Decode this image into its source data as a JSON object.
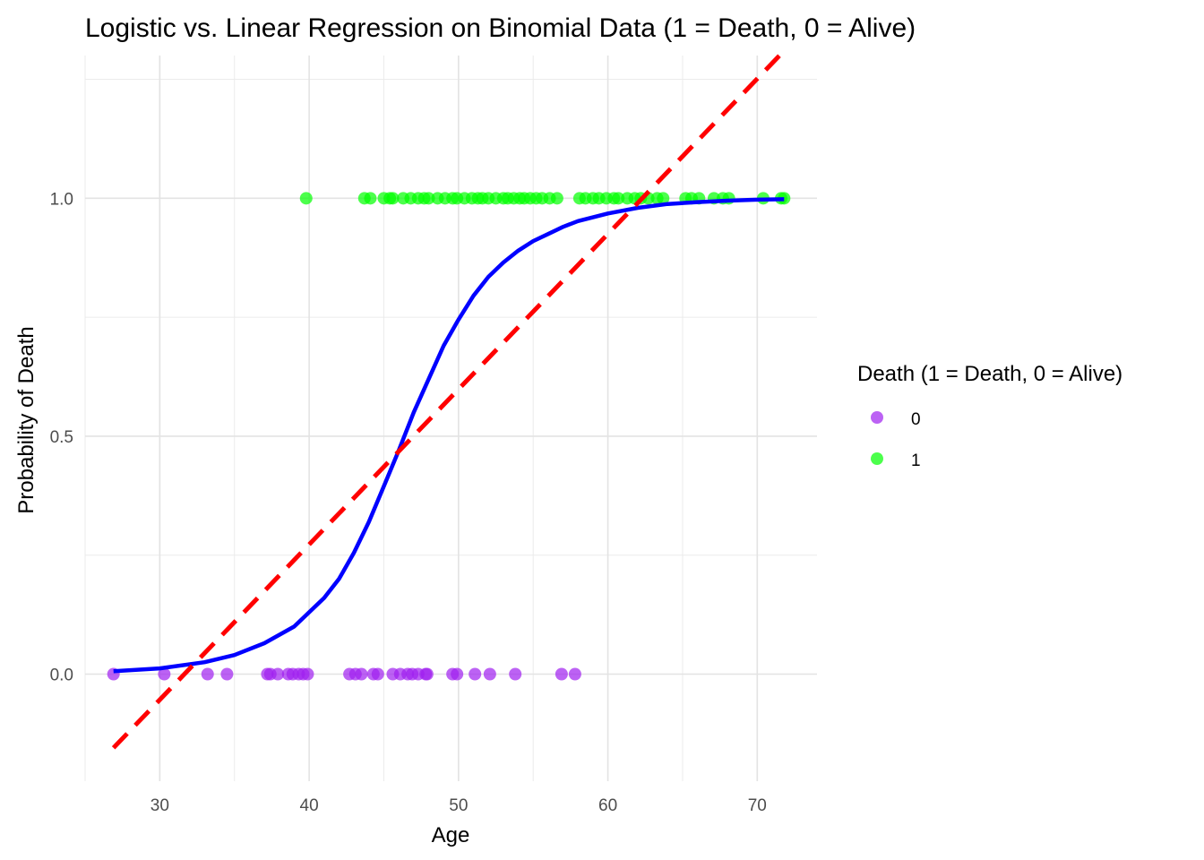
{
  "chart_data": {
    "type": "scatter",
    "title": "Logistic vs. Linear Regression on Binomial Data (1 = Death, 0 = Alive)",
    "xlabel": "Age",
    "ylabel": "Probability of Death",
    "xlim": [
      25,
      74
    ],
    "ylim": [
      -0.225,
      1.3
    ],
    "x_ticks": [
      30,
      40,
      50,
      60,
      70
    ],
    "y_ticks": [
      0.0,
      0.5,
      1.0
    ],
    "y_tick_labels": [
      "0.0",
      "0.5",
      "1.0"
    ],
    "x_minor_grid": [
      25,
      35,
      45,
      55,
      65
    ],
    "y_minor_grid": [
      0.25,
      0.75,
      1.25
    ],
    "grid": true,
    "legend": {
      "title": "Death (1 = Death, 0 = Alive)",
      "position": "right",
      "entries": [
        {
          "label": "0",
          "color": "#a020f0"
        },
        {
          "label": "1",
          "color": "#00ff00"
        }
      ]
    },
    "series": [
      {
        "name": "0",
        "kind": "points",
        "color": "#a020f0",
        "y": 0,
        "x": [
          26.9,
          30.3,
          33.2,
          34.5,
          37.2,
          37.4,
          37.9,
          38.6,
          38.9,
          39.3,
          39.6,
          39.9,
          42.7,
          43.1,
          43.5,
          44.3,
          44.6,
          45.6,
          46.1,
          46.6,
          46.9,
          47.3,
          47.8,
          47.9,
          49.6,
          49.9,
          51.1,
          52.1,
          53.8,
          56.9,
          57.8
        ]
      },
      {
        "name": "1",
        "kind": "points",
        "color": "#00ff00",
        "y": 1,
        "x": [
          39.8,
          43.7,
          44.1,
          45.0,
          45.4,
          45.6,
          46.3,
          46.8,
          47.3,
          47.7,
          48.0,
          48.6,
          49.1,
          49.6,
          49.9,
          50.4,
          50.9,
          51.3,
          51.6,
          52.0,
          52.5,
          53.0,
          53.3,
          53.7,
          54.1,
          54.4,
          54.8,
          55.2,
          55.6,
          56.1,
          56.6,
          58.1,
          58.5,
          59.0,
          59.4,
          59.9,
          60.4,
          60.7,
          61.3,
          61.8,
          62.2,
          62.7,
          63.3,
          63.7,
          65.2,
          65.6,
          66.1,
          67.1,
          67.7,
          68.1,
          70.4,
          71.6,
          71.8
        ]
      }
    ],
    "curves": [
      {
        "kind": "logistic-fit",
        "color": "#0000ff",
        "style": "solid",
        "x": [
          26.9,
          30,
          33,
          35,
          37,
          39,
          41,
          42,
          43,
          44,
          45,
          46,
          47,
          48,
          49,
          50,
          51,
          52,
          53,
          54,
          55,
          56,
          57,
          58,
          59,
          60,
          62,
          64,
          66,
          68,
          70,
          71.8
        ],
        "y": [
          0.006,
          0.012,
          0.025,
          0.04,
          0.065,
          0.1,
          0.16,
          0.2,
          0.255,
          0.32,
          0.395,
          0.47,
          0.55,
          0.62,
          0.69,
          0.745,
          0.795,
          0.835,
          0.865,
          0.89,
          0.91,
          0.925,
          0.94,
          0.952,
          0.96,
          0.968,
          0.98,
          0.988,
          0.992,
          0.995,
          0.997,
          0.998
        ]
      },
      {
        "kind": "linear-fit",
        "color": "#ff0000",
        "style": "dashed",
        "x": [
          26.9,
          71.8
        ],
        "y": [
          -0.155,
          1.31
        ]
      }
    ]
  }
}
